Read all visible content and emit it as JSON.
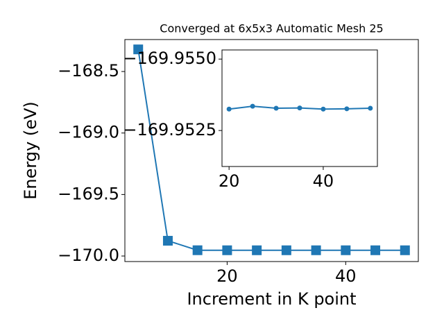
{
  "chart_data": [
    {
      "type": "line",
      "title": "Converged at 6x5x3 Automatic Mesh 25",
      "x_label": "Increment in K point",
      "y_label": "Energy (eV)",
      "x": [
        5,
        10,
        15,
        20,
        25,
        30,
        35,
        40,
        45,
        50
      ],
      "series": [
        {
          "color": "#1f77b4",
          "marker": "square",
          "values": [
            -168.32,
            -169.876,
            -169.953,
            -169.95325,
            -169.95335,
            -169.95328,
            -169.95329,
            -169.95325,
            -169.95326,
            -169.95328
          ]
        }
      ],
      "xlim": [
        2.75,
        52.25
      ],
      "xticks": [
        20,
        40
      ],
      "ylim": [
        -170.045,
        -168.24
      ],
      "yticks": [
        {
          "value": -170.0,
          "label": "−170.0"
        },
        {
          "value": -169.5,
          "label": "−169.5"
        },
        {
          "value": -169.0,
          "label": "−169.0"
        },
        {
          "value": -168.5,
          "label": "−168.5"
        }
      ]
    },
    {
      "type": "line",
      "x": [
        20,
        25,
        30,
        35,
        40,
        45,
        50
      ],
      "series": [
        {
          "color": "#1f77b4",
          "marker": "circle",
          "values": [
            -169.95325,
            -169.95335,
            -169.95328,
            -169.95329,
            -169.95325,
            -169.95326,
            -169.95328
          ]
        }
      ],
      "xlim": [
        18.5,
        51.5
      ],
      "xticks": [
        20,
        40
      ],
      "ylim": [
        -169.95124,
        -169.95532
      ],
      "yticks": [
        {
          "value": -169.9525,
          "label": "−169.9525"
        },
        {
          "value": -169.955,
          "label": "−169.9550"
        }
      ]
    }
  ]
}
